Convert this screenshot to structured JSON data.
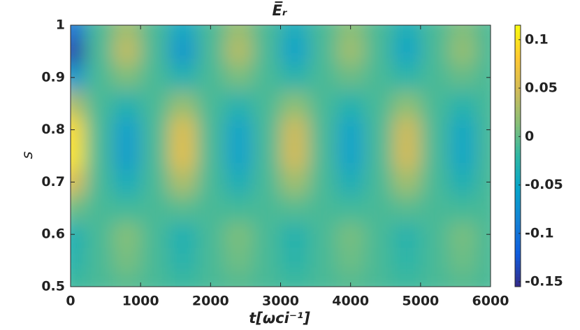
{
  "chart_data": {
    "type": "heatmap",
    "title": "E̅ᵣ",
    "x_label": "t[ωci⁻¹]",
    "y_label": "s",
    "x": [
      0,
      400,
      800,
      1200,
      1600,
      2000,
      2400,
      2800,
      3200,
      3600,
      4000,
      4400,
      4800,
      5200,
      5600,
      6000
    ],
    "y": [
      0.5,
      0.55,
      0.6,
      0.65,
      0.7,
      0.75,
      0.8,
      0.85,
      0.9,
      0.95,
      1
    ],
    "z": [
      [
        -0.015,
        -0.01,
        -0.005,
        -0.01,
        -0.015,
        -0.01,
        -0.006,
        -0.01,
        -0.014,
        -0.01,
        -0.006,
        -0.01,
        -0.014,
        -0.01,
        -0.006,
        -0.01
      ],
      [
        -0.028,
        -0.01,
        0.008,
        -0.01,
        -0.028,
        -0.01,
        0.005,
        -0.01,
        -0.025,
        -0.01,
        0.004,
        -0.01,
        -0.024,
        -0.01,
        0.004,
        -0.01
      ],
      [
        -0.033,
        -0.01,
        0.013,
        -0.01,
        -0.033,
        -0.01,
        0.01,
        -0.01,
        -0.03,
        -0.01,
        0.008,
        -0.01,
        -0.028,
        -0.01,
        0.008,
        -0.01
      ],
      [
        0.005,
        -0.01,
        -0.013,
        -0.01,
        -0.004,
        -0.01,
        -0.012,
        -0.01,
        -0.005,
        -0.01,
        -0.013,
        -0.01,
        -0.004,
        -0.01,
        -0.012,
        -0.01
      ],
      [
        0.056,
        -0.01,
        -0.04,
        -0.01,
        0.032,
        -0.01,
        -0.037,
        -0.01,
        0.026,
        -0.01,
        -0.037,
        -0.01,
        0.026,
        -0.01,
        -0.034,
        -0.01
      ],
      [
        0.1,
        -0.01,
        -0.06,
        -0.01,
        0.06,
        -0.01,
        -0.055,
        -0.01,
        0.05,
        -0.01,
        -0.055,
        -0.01,
        0.05,
        -0.01,
        -0.05,
        -0.01
      ],
      [
        0.095,
        -0.01,
        -0.058,
        -0.01,
        0.057,
        -0.01,
        -0.053,
        -0.01,
        0.047,
        -0.01,
        -0.053,
        -0.01,
        0.047,
        -0.01,
        -0.048,
        -0.01
      ],
      [
        0.032,
        -0.01,
        -0.03,
        -0.01,
        0.02,
        -0.01,
        -0.028,
        -0.01,
        0.016,
        -0.01,
        -0.029,
        -0.01,
        0.016,
        -0.01,
        -0.027,
        -0.01
      ],
      [
        -0.064,
        -0.01,
        0.01,
        -0.01,
        -0.031,
        -0.01,
        0.008,
        -0.01,
        -0.027,
        -0.01,
        0.003,
        -0.01,
        -0.024,
        -0.01,
        0.001,
        -0.01
      ],
      [
        -0.14,
        -0.01,
        0.04,
        -0.01,
        -0.065,
        -0.01,
        0.035,
        -0.01,
        -0.055,
        -0.01,
        0.025,
        -0.01,
        -0.05,
        -0.01,
        0.02,
        -0.01
      ],
      [
        -0.1,
        -0.01,
        0.025,
        -0.01,
        -0.048,
        -0.01,
        0.022,
        -0.01,
        -0.042,
        -0.01,
        0.015,
        -0.01,
        -0.038,
        -0.01,
        0.011,
        -0.01
      ]
    ],
    "xlim": [
      0,
      6000
    ],
    "xticks": [
      0,
      1000,
      2000,
      3000,
      4000,
      5000,
      6000
    ],
    "ylim": [
      0.5,
      1
    ],
    "yticks": [
      0.5,
      0.6,
      0.7,
      0.8,
      0.9,
      1
    ],
    "clim": [
      -0.155,
      0.115
    ],
    "cticks": [
      -0.15,
      -0.1,
      -0.05,
      0,
      0.05,
      0.1
    ],
    "colormap": "parula",
    "colorbar": true
  }
}
